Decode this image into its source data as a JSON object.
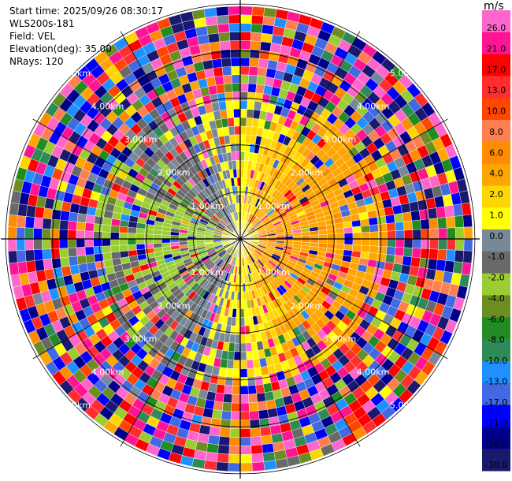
{
  "info": {
    "start_time": "Start time: 2025/09/26 08:30:17",
    "instrument": "WLS200s-181",
    "field": "Field: VEL",
    "elevation": "Elevation(deg): 35.00",
    "nrays": "NRays: 120"
  },
  "colorbar": {
    "unit": "m/s",
    "ticks": [
      "26.0",
      "21.0",
      "17.0",
      "13.0",
      "10.0",
      "8.0",
      "6.0",
      "4.0",
      "2.0",
      "1.0",
      "0.0",
      "-1.0",
      "-2.0",
      "-4.0",
      "-6.0",
      "-8.0",
      "-10.0",
      "-13.0",
      "-17.0",
      "-21.0",
      "-26.0",
      "-30.0"
    ],
    "colors": [
      "#ff66cc",
      "#ff1493",
      "#ff0000",
      "#ff2d2d",
      "#ff4500",
      "#ff7f50",
      "#ff8c00",
      "#ffa500",
      "#ffd700",
      "#ffff00",
      "#778899",
      "#696969",
      "#9acd32",
      "#6b8e23",
      "#228b22",
      "#2e8b57",
      "#1e90ff",
      "#4169e1",
      "#0000ff",
      "#00008b",
      "#191970"
    ]
  },
  "chart_data": {
    "type": "polar-ppi",
    "field": "VEL",
    "nrays": 120,
    "range_rings_km": [
      1,
      2,
      3,
      4,
      5
    ],
    "ring_labels": [
      "1.00km",
      "2.00km",
      "3.00km",
      "4.00km",
      "5.00km"
    ],
    "spokes": 12,
    "value_range": [
      -30,
      26
    ],
    "units": "m/s"
  }
}
